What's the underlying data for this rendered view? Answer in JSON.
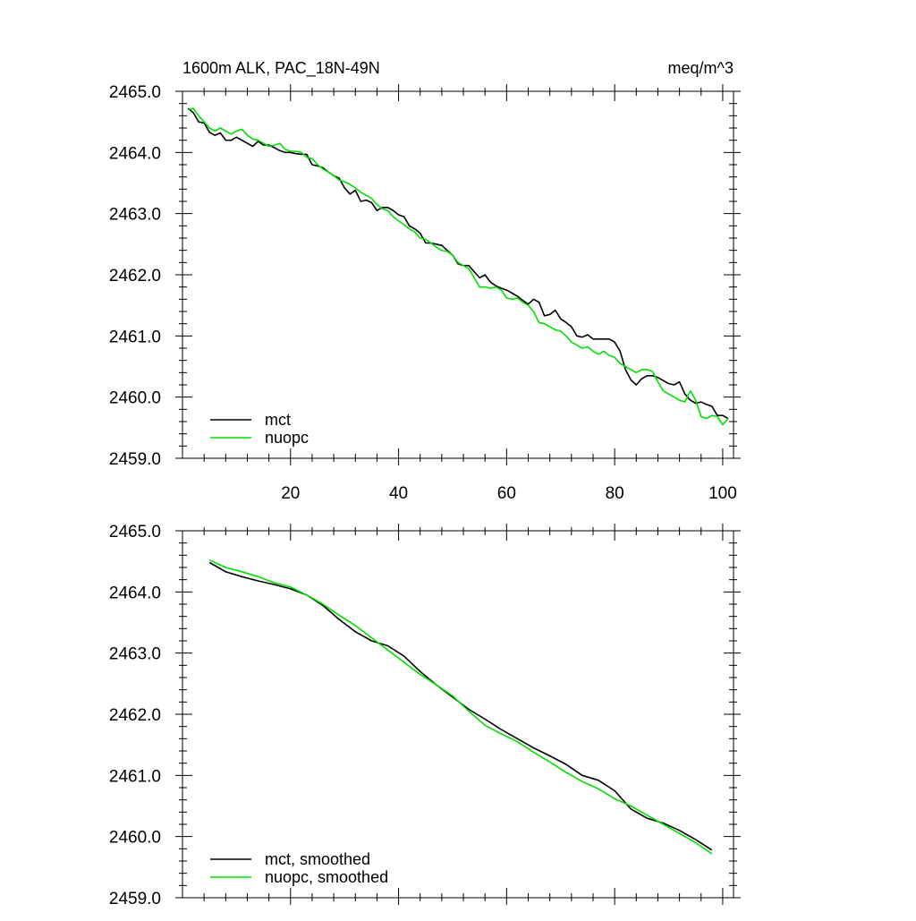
{
  "chart_data": [
    {
      "type": "line",
      "title_left": "1600m ALK, PAC_18N-49N",
      "title_right": "meq/m^3",
      "xlim": [
        0,
        102
      ],
      "ylim": [
        2459.0,
        2465.0
      ],
      "x_ticks": [
        20,
        40,
        60,
        80,
        100
      ],
      "x_tick_labels": [
        "20",
        "40",
        "60",
        "80",
        "100"
      ],
      "y_ticks": [
        2459.0,
        2460.0,
        2461.0,
        2462.0,
        2463.0,
        2464.0,
        2465.0
      ],
      "y_tick_labels": [
        "2459.0",
        "2460.0",
        "2461.0",
        "2462.0",
        "2463.0",
        "2464.0",
        "2465.0"
      ],
      "legend_position": "bottom-left",
      "series": [
        {
          "name": "mct",
          "color": "#000000",
          "x": [
            1,
            2,
            3,
            4,
            5,
            6,
            7,
            8,
            9,
            10,
            11,
            12,
            13,
            14,
            15,
            16,
            17,
            18,
            19,
            20,
            21,
            22,
            23,
            24,
            25,
            26,
            27,
            28,
            29,
            30,
            31,
            32,
            33,
            34,
            35,
            36,
            37,
            38,
            39,
            40,
            41,
            42,
            43,
            44,
            45,
            46,
            47,
            48,
            49,
            50,
            51,
            52,
            53,
            54,
            55,
            56,
            57,
            58,
            59,
            60,
            61,
            62,
            63,
            64,
            65,
            66,
            67,
            68,
            69,
            70,
            71,
            72,
            73,
            74,
            75,
            76,
            77,
            78,
            79,
            80,
            81,
            82,
            83,
            84,
            85,
            86,
            87,
            88,
            89,
            90,
            91,
            92,
            93,
            94,
            95,
            96,
            97,
            98,
            99,
            100,
            101
          ],
          "values": [
            2464.72,
            2464.65,
            2464.5,
            2464.48,
            2464.33,
            2464.28,
            2464.32,
            2464.2,
            2464.2,
            2464.25,
            2464.2,
            2464.15,
            2464.1,
            2464.18,
            2464.12,
            2464.12,
            2464.08,
            2464.03,
            2464.0,
            2464.0,
            2463.98,
            2463.97,
            2463.97,
            2463.8,
            2463.78,
            2463.75,
            2463.68,
            2463.62,
            2463.58,
            2463.42,
            2463.32,
            2463.38,
            2463.2,
            2463.22,
            2463.18,
            2463.05,
            2463.1,
            2463.1,
            2463.05,
            2462.98,
            2462.95,
            2462.8,
            2462.75,
            2462.68,
            2462.52,
            2462.52,
            2462.5,
            2462.48,
            2462.4,
            2462.32,
            2462.18,
            2462.15,
            2462.15,
            2462.05,
            2461.95,
            2462.0,
            2461.88,
            2461.82,
            2461.78,
            2461.75,
            2461.7,
            2461.65,
            2461.58,
            2461.52,
            2461.6,
            2461.55,
            2461.33,
            2461.35,
            2461.42,
            2461.28,
            2461.22,
            2461.15,
            2461.0,
            2460.98,
            2461.02,
            2460.95,
            2460.95,
            2460.95,
            2460.95,
            2460.9,
            2460.75,
            2460.45,
            2460.28,
            2460.2,
            2460.3,
            2460.35,
            2460.35,
            2460.32,
            2460.27,
            2460.22,
            2460.2,
            2460.25,
            2460.05,
            2459.95,
            2459.9,
            2459.92,
            2459.88,
            2459.85,
            2459.7,
            2459.7,
            2459.65
          ]
        },
        {
          "name": "nuopc",
          "color": "#00e000",
          "x": [
            1,
            2,
            3,
            4,
            5,
            6,
            7,
            8,
            9,
            10,
            11,
            12,
            13,
            14,
            15,
            16,
            17,
            18,
            19,
            20,
            21,
            22,
            23,
            24,
            25,
            26,
            27,
            28,
            29,
            30,
            31,
            32,
            33,
            34,
            35,
            36,
            37,
            38,
            39,
            40,
            41,
            42,
            43,
            44,
            45,
            46,
            47,
            48,
            49,
            50,
            51,
            52,
            53,
            54,
            55,
            56,
            57,
            58,
            59,
            60,
            61,
            62,
            63,
            64,
            65,
            66,
            67,
            68,
            69,
            70,
            71,
            72,
            73,
            74,
            75,
            76,
            77,
            78,
            79,
            80,
            81,
            82,
            83,
            84,
            85,
            86,
            87,
            88,
            89,
            90,
            91,
            92,
            93,
            94,
            95,
            96,
            97,
            98,
            99,
            100,
            101
          ],
          "values": [
            2464.7,
            2464.72,
            2464.6,
            2464.5,
            2464.4,
            2464.35,
            2464.4,
            2464.35,
            2464.3,
            2464.35,
            2464.38,
            2464.28,
            2464.22,
            2464.2,
            2464.15,
            2464.1,
            2464.12,
            2464.15,
            2464.05,
            2464.02,
            2464.02,
            2464.0,
            2463.92,
            2463.9,
            2463.8,
            2463.73,
            2463.68,
            2463.62,
            2463.55,
            2463.52,
            2463.48,
            2463.42,
            2463.35,
            2463.3,
            2463.25,
            2463.15,
            2463.08,
            2463.05,
            2462.95,
            2462.88,
            2462.82,
            2462.75,
            2462.7,
            2462.6,
            2462.58,
            2462.52,
            2462.45,
            2462.4,
            2462.38,
            2462.32,
            2462.2,
            2462.15,
            2462.1,
            2461.95,
            2461.8,
            2461.8,
            2461.78,
            2461.8,
            2461.75,
            2461.62,
            2461.6,
            2461.62,
            2461.55,
            2461.5,
            2461.4,
            2461.22,
            2461.2,
            2461.15,
            2461.1,
            2461.08,
            2461.0,
            2460.9,
            2460.85,
            2460.8,
            2460.82,
            2460.75,
            2460.7,
            2460.75,
            2460.68,
            2460.65,
            2460.55,
            2460.5,
            2460.45,
            2460.4,
            2460.45,
            2460.45,
            2460.42,
            2460.25,
            2460.1,
            2460.05,
            2460.0,
            2459.95,
            2459.92,
            2460.1,
            2459.95,
            2459.68,
            2459.65,
            2459.7,
            2459.68,
            2459.55,
            2459.65
          ]
        }
      ]
    },
    {
      "type": "line",
      "xlim": [
        0,
        102
      ],
      "ylim": [
        2459.0,
        2465.0
      ],
      "x_ticks": [
        20,
        40,
        60,
        80,
        100
      ],
      "y_ticks": [
        2459.0,
        2460.0,
        2461.0,
        2462.0,
        2463.0,
        2464.0,
        2465.0
      ],
      "y_tick_labels": [
        "2459.0",
        "2460.0",
        "2461.0",
        "2462.0",
        "2463.0",
        "2464.0",
        "2465.0"
      ],
      "legend_position": "bottom-left",
      "series": [
        {
          "name": "mct, smoothed",
          "color": "#000000",
          "x": [
            5,
            8,
            11,
            14,
            17,
            20,
            23,
            26,
            29,
            32,
            35,
            38,
            41,
            44,
            47,
            50,
            53,
            56,
            59,
            62,
            65,
            68,
            71,
            74,
            77,
            80,
            83,
            86,
            89,
            92,
            95,
            98
          ],
          "values": [
            2464.48,
            2464.33,
            2464.25,
            2464.18,
            2464.12,
            2464.05,
            2463.95,
            2463.78,
            2463.55,
            2463.35,
            2463.2,
            2463.12,
            2462.95,
            2462.7,
            2462.48,
            2462.28,
            2462.08,
            2461.92,
            2461.75,
            2461.6,
            2461.45,
            2461.32,
            2461.18,
            2461.0,
            2460.92,
            2460.75,
            2460.45,
            2460.3,
            2460.22,
            2460.1,
            2459.95,
            2459.78
          ]
        },
        {
          "name": "nuopc, smoothed",
          "color": "#00e000",
          "x": [
            5,
            8,
            11,
            14,
            17,
            20,
            23,
            26,
            29,
            32,
            35,
            38,
            41,
            44,
            47,
            50,
            53,
            56,
            59,
            62,
            65,
            68,
            71,
            74,
            77,
            80,
            83,
            86,
            89,
            92,
            95,
            98
          ],
          "values": [
            2464.52,
            2464.4,
            2464.33,
            2464.25,
            2464.15,
            2464.08,
            2463.95,
            2463.8,
            2463.62,
            2463.45,
            2463.25,
            2463.05,
            2462.85,
            2462.65,
            2462.48,
            2462.3,
            2462.05,
            2461.82,
            2461.68,
            2461.55,
            2461.38,
            2461.22,
            2461.05,
            2460.9,
            2460.78,
            2460.62,
            2460.5,
            2460.35,
            2460.2,
            2460.05,
            2459.9,
            2459.72
          ]
        }
      ]
    }
  ]
}
